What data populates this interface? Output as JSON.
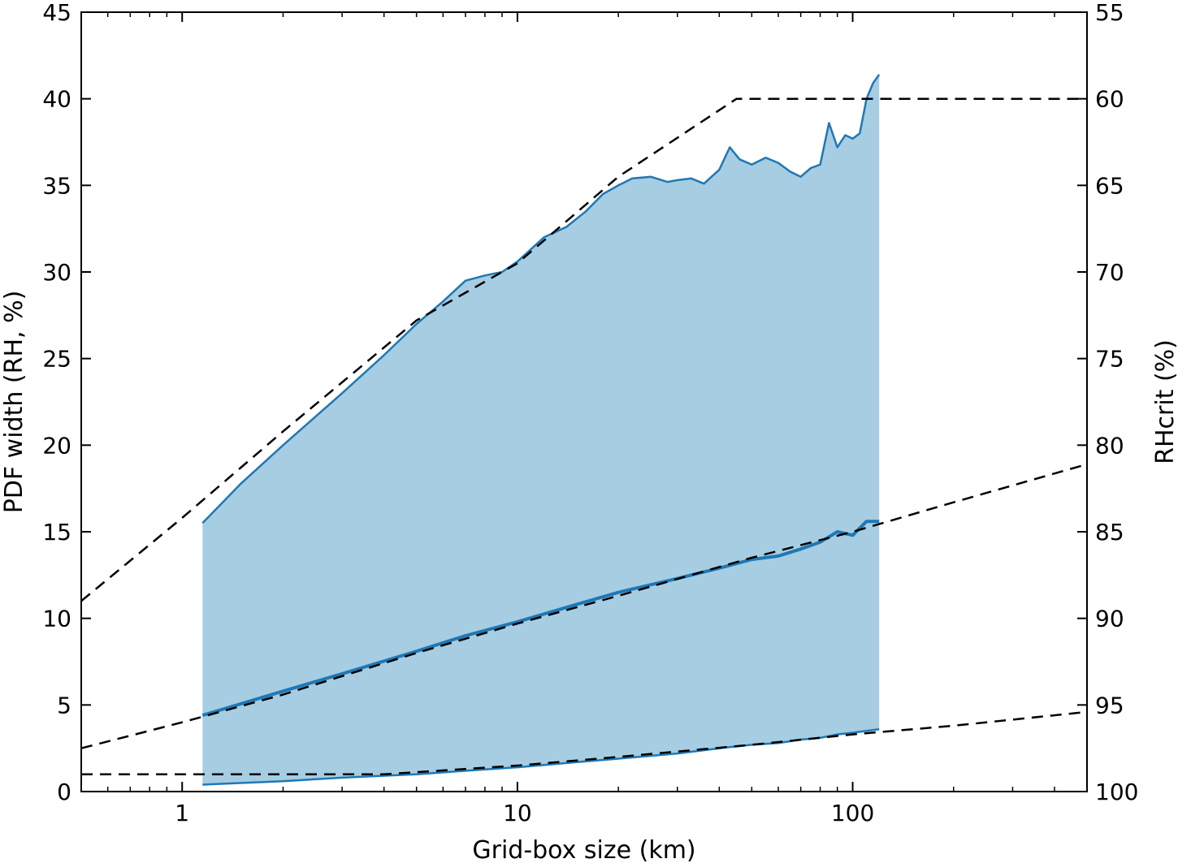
{
  "chart_data": {
    "type": "area",
    "title": "",
    "xlabel": "Grid-box size (km)",
    "ylabel": "PDF width (RH, %)",
    "y2label": "RHcrit (%)",
    "xscale": "log",
    "xlim": [
      0.5,
      500
    ],
    "ylim": [
      0,
      45
    ],
    "y2lim": [
      100,
      55
    ],
    "x_ticks": [
      {
        "value": 1,
        "label": "1"
      },
      {
        "value": 10,
        "label": "10"
      },
      {
        "value": 100,
        "label": "100"
      }
    ],
    "y_ticks": [
      "0",
      "5",
      "10",
      "15",
      "20",
      "25",
      "30",
      "35",
      "40",
      "45"
    ],
    "y2_ticks": [
      "100",
      "95",
      "90",
      "85",
      "80",
      "75",
      "70",
      "65",
      "60",
      "55"
    ],
    "grid": false,
    "colors": {
      "fill": "#a6cde2",
      "line": "#1f78b4",
      "dashed": "#000000"
    },
    "series": [
      {
        "role": "upper",
        "style": "solid",
        "x": [
          1.15,
          1.5,
          2,
          3,
          4,
          5,
          6,
          7,
          8,
          9,
          10,
          12,
          14,
          16,
          18,
          20,
          22,
          25,
          28,
          30,
          33,
          36,
          40,
          43,
          46,
          50,
          55,
          60,
          65,
          70,
          75,
          80,
          85,
          90,
          95,
          100,
          105,
          110,
          115,
          120
        ],
        "y": [
          15.5,
          17.8,
          20.0,
          23.0,
          25.2,
          27.0,
          28.3,
          29.5,
          29.8,
          30.0,
          30.6,
          32.0,
          32.6,
          33.5,
          34.5,
          35.0,
          35.4,
          35.5,
          35.2,
          35.3,
          35.4,
          35.1,
          35.9,
          37.2,
          36.5,
          36.2,
          36.6,
          36.3,
          35.8,
          35.5,
          36.0,
          36.2,
          38.6,
          37.2,
          37.9,
          37.7,
          38.0,
          40.0,
          40.9,
          41.4
        ]
      },
      {
        "role": "median",
        "style": "solid",
        "x": [
          1.15,
          2,
          3,
          5,
          7,
          10,
          15,
          20,
          30,
          40,
          50,
          60,
          70,
          80,
          90,
          100,
          110,
          120
        ],
        "y": [
          4.4,
          5.8,
          6.8,
          8.1,
          9.0,
          9.8,
          10.8,
          11.5,
          12.3,
          12.9,
          13.4,
          13.6,
          14.0,
          14.4,
          15.0,
          14.8,
          15.6,
          15.6
        ]
      },
      {
        "role": "lower",
        "style": "solid",
        "x": [
          1.15,
          2,
          3,
          5,
          7,
          10,
          15,
          20,
          30,
          40,
          50,
          60,
          70,
          80,
          90,
          100,
          110,
          120
        ],
        "y": [
          0.4,
          0.6,
          0.8,
          1.0,
          1.2,
          1.4,
          1.7,
          1.9,
          2.2,
          2.5,
          2.7,
          2.8,
          3.0,
          3.1,
          3.3,
          3.4,
          3.5,
          3.6
        ]
      },
      {
        "role": "upper-fit",
        "style": "dashed",
        "x": [
          0.5,
          1,
          2,
          5,
          10,
          20,
          45,
          500
        ],
        "y": [
          11.0,
          15.8,
          20.8,
          27.2,
          30.5,
          35.5,
          40.0,
          40.0
        ]
      },
      {
        "role": "median-fit",
        "style": "dashed",
        "x": [
          0.5,
          1,
          2,
          5,
          10,
          20,
          50,
          100,
          200,
          500
        ],
        "y": [
          2.5,
          4.0,
          5.6,
          8.0,
          9.7,
          11.3,
          13.5,
          15.0,
          16.7,
          18.9
        ]
      },
      {
        "role": "lower-fit",
        "style": "dashed",
        "x": [
          0.5,
          4,
          10,
          20,
          50,
          100,
          200,
          500
        ],
        "y": [
          1.0,
          1.0,
          1.5,
          2.0,
          2.7,
          3.3,
          3.8,
          4.6
        ]
      }
    ]
  }
}
